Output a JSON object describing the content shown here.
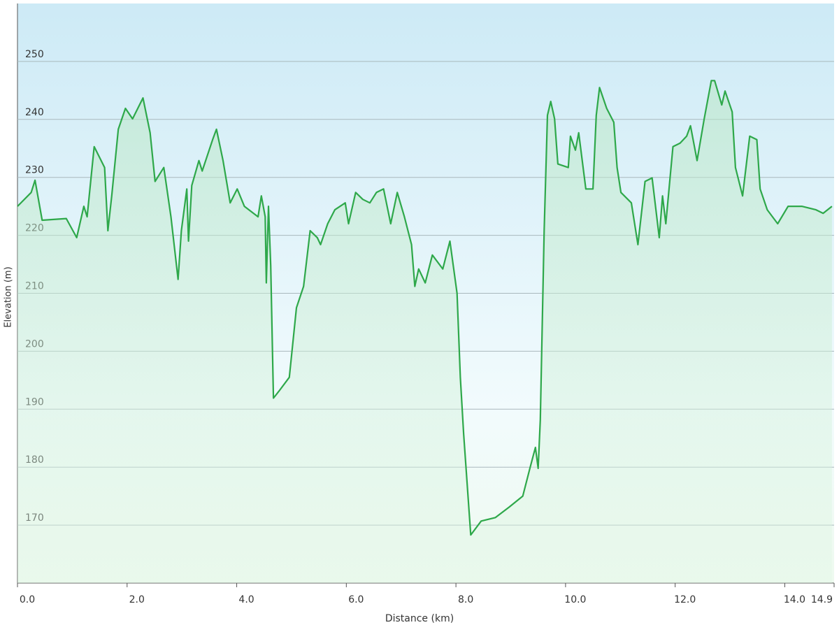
{
  "chart_data": {
    "type": "area",
    "x_label": "Distance  (km)",
    "y_label": "Elevation (m)",
    "xlim": [
      0,
      14.9
    ],
    "ylim": [
      160,
      260
    ],
    "xticks": [
      {
        "value": 0,
        "label": "0.0"
      },
      {
        "value": 2,
        "label": "2.0"
      },
      {
        "value": 4,
        "label": "4.0"
      },
      {
        "value": 6,
        "label": "6.0"
      },
      {
        "value": 8,
        "label": "8.0"
      },
      {
        "value": 10,
        "label": "10.0"
      },
      {
        "value": 12,
        "label": "12.0"
      },
      {
        "value": 14,
        "label": "14.0"
      },
      14.9
    ],
    "yticks": [
      170,
      180,
      190,
      200,
      210,
      220,
      230,
      240,
      250
    ],
    "grid": true,
    "color": "#2ea84a",
    "x": [
      0,
      0.25,
      0.32,
      0.45,
      0.89,
      1.08,
      1.21,
      1.27,
      1.4,
      1.59,
      1.65,
      1.72,
      1.84,
      1.97,
      2.1,
      2.29,
      2.42,
      2.51,
      2.67,
      2.8,
      2.93,
      2.99,
      3.09,
      3.12,
      3.18,
      3.31,
      3.37,
      3.56,
      3.63,
      3.75,
      3.88,
      4.01,
      4.14,
      4.39,
      4.45,
      4.52,
      4.54,
      4.58,
      4.62,
      4.67,
      4.77,
      4.96,
      5.09,
      5.22,
      5.34,
      5.47,
      5.53,
      5.66,
      5.79,
      5.98,
      6.04,
      6.17,
      6.3,
      6.43,
      6.55,
      6.68,
      6.81,
      6.93,
      7.06,
      7.19,
      7.25,
      7.32,
      7.44,
      7.57,
      7.76,
      7.89,
      8.02,
      8.08,
      8.14,
      8.27,
      8.46,
      8.72,
      8.97,
      9.22,
      9.35,
      9.45,
      9.5,
      9.54,
      9.61,
      9.67,
      9.73,
      9.8,
      9.86,
      10.05,
      10.09,
      10.18,
      10.24,
      10.37,
      10.5,
      10.56,
      10.62,
      10.75,
      10.88,
      10.94,
      11.01,
      11.2,
      11.32,
      11.45,
      11.58,
      11.71,
      11.77,
      11.83,
      11.96,
      12.09,
      12.21,
      12.28,
      12.4,
      12.53,
      12.66,
      12.72,
      12.85,
      12.91,
      13.04,
      13.1,
      13.23,
      13.36,
      13.49,
      13.55,
      13.68,
      13.87,
      14.06,
      14.31,
      14.57,
      14.7,
      14.86
    ],
    "values": [
      225.0,
      227.4,
      229.5,
      222.6,
      222.9,
      219.6,
      225.0,
      223.2,
      235.3,
      231.7,
      220.8,
      226.8,
      238.3,
      241.9,
      240.1,
      243.7,
      237.7,
      229.3,
      231.7,
      223.2,
      212.4,
      220.8,
      228.0,
      219.0,
      228.6,
      232.9,
      231.1,
      236.5,
      238.3,
      232.9,
      225.6,
      228.0,
      225.0,
      223.2,
      226.8,
      223.2,
      211.8,
      225.0,
      214.8,
      191.9,
      193.1,
      195.5,
      207.5,
      211.2,
      220.8,
      219.6,
      218.4,
      222.0,
      224.4,
      225.6,
      222.0,
      227.4,
      226.2,
      225.6,
      227.4,
      228.0,
      222.0,
      227.4,
      223.2,
      218.4,
      211.2,
      214.2,
      211.8,
      216.6,
      214.2,
      219.0,
      210.0,
      195.5,
      185.8,
      168.3,
      170.7,
      171.3,
      173.1,
      175.0,
      179.8,
      183.4,
      179.8,
      188.2,
      220.8,
      240.7,
      243.1,
      240.1,
      232.3,
      231.7,
      237.1,
      234.7,
      237.7,
      228.0,
      228.0,
      240.7,
      245.5,
      241.9,
      239.5,
      231.7,
      227.4,
      225.6,
      218.4,
      229.3,
      229.9,
      219.6,
      226.8,
      222.0,
      235.3,
      235.9,
      237.1,
      238.9,
      232.9,
      240.1,
      246.7,
      246.7,
      242.5,
      244.9,
      241.3,
      231.7,
      226.8,
      237.1,
      236.5,
      228.0,
      224.4,
      222.0,
      225.0,
      225.0,
      224.4,
      223.8,
      225.0
    ]
  }
}
